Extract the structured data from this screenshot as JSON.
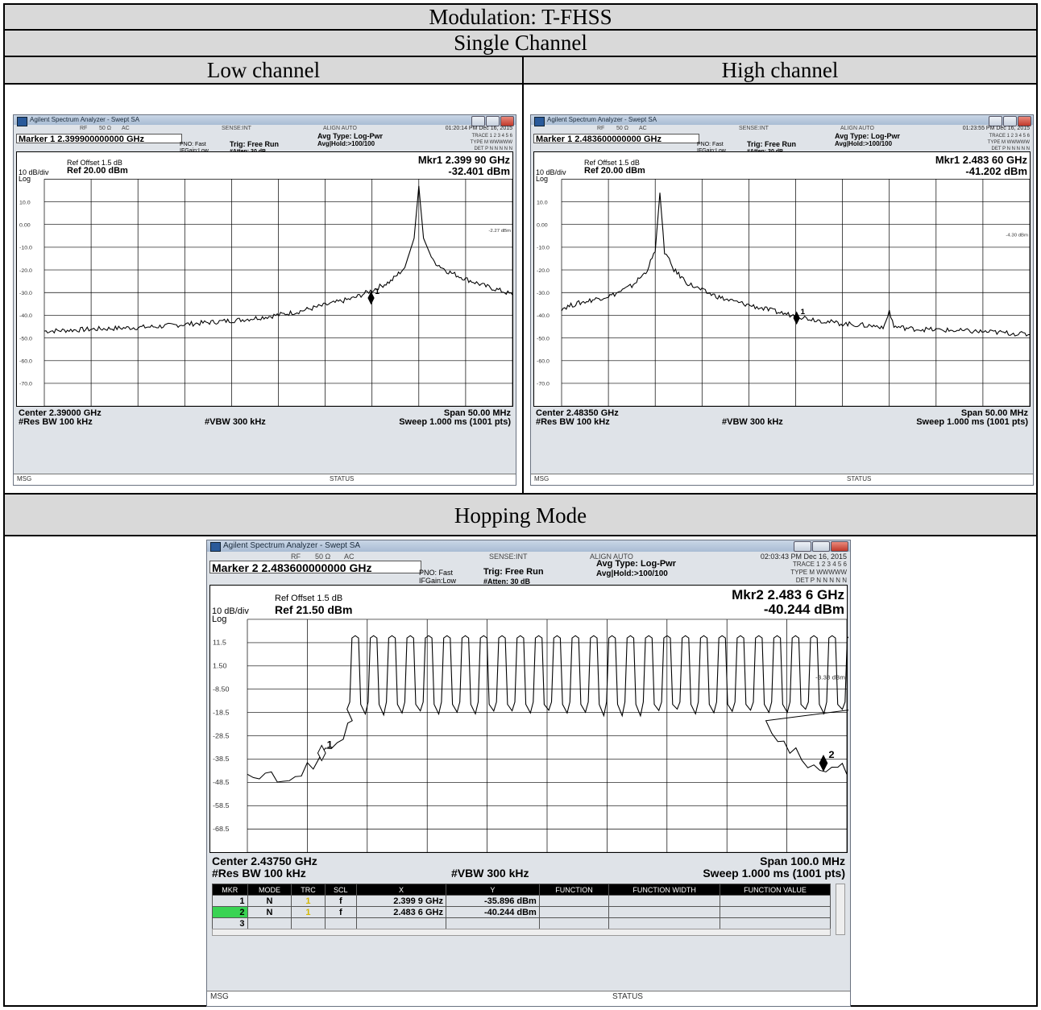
{
  "header": {
    "title": "Modulation: T-FHSS",
    "single_channel": "Single Channel",
    "low_channel": "Low channel",
    "high_channel": "High channel",
    "hopping_mode": "Hopping Mode"
  },
  "colors": {
    "header_bg": "#d9d9d9",
    "screen_bg": "#dfe3e8",
    "plot_bg": "#ffffff",
    "trace": "#000000"
  },
  "chart_data": [
    {
      "id": "low",
      "type": "line",
      "window_title": "Agilent Spectrum Analyzer - Swept SA",
      "top_labels": {
        "rf": "RF",
        "ohm": "50 Ω",
        "ac": "AC",
        "sense": "SENSE:INT",
        "align": "ALIGN AUTO",
        "time": "01:20:14 PM Dec 16, 2015"
      },
      "marker_title": "Marker 1 2.399900000000 GHz",
      "pno": "PNO: Fast",
      "ifgain": "IFGain:Low",
      "trig": "Trig: Free Run",
      "atten": "#Atten: 30 dB",
      "avg_type": "Avg Type: Log-Pwr",
      "avg_hold": "Avg|Hold:>100/100",
      "trace_row": "TRACE 1 2 3 4 5 6",
      "type_row": "TYPE M WWWWW",
      "det_row": "DET P N N N N N",
      "ref_offset": "Ref Offset 1.5 dB",
      "scale": "10 dB/div",
      "ref": "Ref 20.00 dBm",
      "log": "Log",
      "mkr_readout": "Mkr1 2.399 90 GHz",
      "mkr_value": "-32.401 dBm",
      "y_ticks": [
        "10.0",
        "0.00",
        "-10.0",
        "-20.0",
        "-30.0",
        "-40.0",
        "-50.0",
        "-60.0",
        "-70.0"
      ],
      "ylim": [
        -80,
        20
      ],
      "xlim": [
        2.365,
        2.415
      ],
      "display_line": {
        "value": -2.27,
        "label": "-2.27 dBm"
      },
      "center": "Center 2.39000 GHz",
      "res_bw": "#Res BW 100 kHz",
      "vbw": "#VBW 300 kHz",
      "span": "Span 50.00 MHz",
      "sweep": "Sweep  1.000 ms (1001 pts)",
      "msg": "MSG",
      "status": "STATUS",
      "markers": [
        {
          "label": "1",
          "x": 2.3999,
          "y": -32.4
        }
      ],
      "series": [
        {
          "x": [
            2.365,
            2.368,
            2.371,
            2.374,
            2.377,
            2.38,
            2.383,
            2.386,
            2.389,
            2.392,
            2.395,
            2.398,
            2.4,
            2.402,
            2.4035,
            2.4045,
            2.405,
            2.4055,
            2.4065,
            2.408,
            2.41,
            2.412,
            2.414,
            2.415
          ],
          "y": [
            -47,
            -46.5,
            -46,
            -45.5,
            -45,
            -44,
            -43,
            -42,
            -40.5,
            -38.5,
            -35.5,
            -32.5,
            -29,
            -25,
            -19,
            -6,
            17,
            -6,
            -16,
            -20.5,
            -24,
            -27,
            -29.5,
            -31
          ]
        }
      ]
    },
    {
      "id": "high",
      "type": "line",
      "window_title": "Agilent Spectrum Analyzer - Swept SA",
      "top_labels": {
        "rf": "RF",
        "ohm": "50 Ω",
        "ac": "AC",
        "sense": "SENSE:INT",
        "align": "ALIGN AUTO",
        "time": "01:23:55 PM Dec 16, 2015"
      },
      "marker_title": "Marker 1 2.483600000000 GHz",
      "pno": "PNO: Fast",
      "ifgain": "IFGain:Low",
      "trig": "Trig: Free Run",
      "atten": "#Atten: 30 dB",
      "avg_type": "Avg Type: Log-Pwr",
      "avg_hold": "Avg|Hold:>100/100",
      "trace_row": "TRACE 1 2 3 4 5 6",
      "type_row": "TYPE M WWWWW",
      "det_row": "DET P N N N N N",
      "ref_offset": "Ref Offset 1.5 dB",
      "scale": "10 dB/div",
      "ref": "Ref 20.00 dBm",
      "log": "Log",
      "mkr_readout": "Mkr1 2.483 60 GHz",
      "mkr_value": "-41.202 dBm",
      "y_ticks": [
        "10.0",
        "0.00",
        "-10.0",
        "-20.0",
        "-30.0",
        "-40.0",
        "-50.0",
        "-60.0",
        "-70.0"
      ],
      "ylim": [
        -80,
        20
      ],
      "xlim": [
        2.4585,
        2.5085
      ],
      "display_line": {
        "value": -4.3,
        "label": "-4.30 dBm"
      },
      "center": "Center 2.48350 GHz",
      "res_bw": "#Res BW 100 kHz",
      "vbw": "#VBW 300 kHz",
      "span": "Span 50.00 MHz",
      "sweep": "Sweep  1.000 ms (1001 pts)",
      "msg": "MSG",
      "status": "STATUS",
      "markers": [
        {
          "label": "1",
          "x": 2.4836,
          "y": -41.2
        }
      ],
      "series": [
        {
          "x": [
            2.4585,
            2.46,
            2.462,
            2.464,
            2.466,
            2.4675,
            2.4685,
            2.469,
            2.4695,
            2.4705,
            2.472,
            2.474,
            2.476,
            2.479,
            2.482,
            2.485,
            2.488,
            2.491,
            2.493,
            2.4935,
            2.494,
            2.496,
            2.499,
            2.502,
            2.505,
            2.5085
          ],
          "y": [
            -37,
            -35,
            -33,
            -31,
            -27,
            -21,
            -12,
            14,
            -12,
            -20,
            -26,
            -30,
            -33,
            -36,
            -39,
            -41.5,
            -43.5,
            -44.5,
            -45,
            -38,
            -45,
            -46,
            -46.5,
            -47,
            -47.5,
            -48.5
          ]
        }
      ]
    },
    {
      "id": "hop",
      "type": "line",
      "window_title": "Agilent Spectrum Analyzer - Swept SA",
      "top_labels": {
        "rf": "RF",
        "ohm": "50 Ω",
        "ac": "AC",
        "sense": "SENSE:INT",
        "align": "ALIGN AUTO",
        "time": "02:03:43 PM Dec 16, 2015"
      },
      "marker_title": "Marker 2 2.483600000000 GHz",
      "pno": "PNO: Fast",
      "ifgain": "IFGain:Low",
      "trig": "Trig: Free Run",
      "atten": "#Atten: 30 dB",
      "avg_type": "Avg Type: Log-Pwr",
      "avg_hold": "Avg|Hold:>100/100",
      "trace_row": "TRACE 1 2 3 4 5 6",
      "type_row": "TYPE M WWWWW",
      "det_row": "DET P N N N N N",
      "ref_offset": "Ref Offset 1.5 dB",
      "scale": "10 dB/div",
      "ref": "Ref 21.50 dBm",
      "log": "Log",
      "mkr_readout": "Mkr2 2.483 6 GHz",
      "mkr_value": "-40.244 dBm",
      "y_ticks": [
        "11.5",
        "1.50",
        "-8.50",
        "-18.5",
        "-28.5",
        "-38.5",
        "-48.5",
        "-58.5",
        "-68.5"
      ],
      "ylim": [
        -78.5,
        21.5
      ],
      "xlim": [
        2.3875,
        2.4875
      ],
      "display_line": {
        "value": -3.38,
        "label": "-3.38 dBm"
      },
      "center": "Center 2.43750 GHz",
      "res_bw": "#Res BW 100 kHz",
      "vbw": "#VBW 300 kHz",
      "span": "Span 100.0 MHz",
      "sweep": "Sweep  1.000 ms (1001 pts)",
      "msg": "MSG",
      "status": "STATUS",
      "hop_channels": {
        "first": 2.4055,
        "spacing": 0.00306,
        "count": 30,
        "peak": 14.5,
        "floor": -18
      },
      "markers": [
        {
          "label": "1",
          "x": 2.3999,
          "y": -35.896,
          "style": "open"
        },
        {
          "label": "2",
          "x": 2.4836,
          "y": -40.244,
          "style": "filled"
        }
      ],
      "edges": {
        "left_x": [
          2.3875,
          2.3895,
          2.3915,
          2.3935,
          2.3955,
          2.3975,
          2.3995,
          2.4015,
          2.4035,
          2.405
        ],
        "left_y": [
          -45,
          -47,
          -44,
          -48,
          -46,
          -40,
          -38,
          -34,
          -30,
          -22
        ],
        "right_x": [
          2.474,
          2.476,
          2.478,
          2.48,
          2.482,
          2.484,
          2.486,
          2.4875
        ],
        "right_y": [
          -22,
          -31,
          -36,
          -39,
          -41,
          -44,
          -42,
          -45
        ]
      },
      "table": {
        "headers": [
          "MKR",
          "MODE",
          "TRC",
          "SCL",
          "X",
          "Y",
          "FUNCTION",
          "FUNCTION WIDTH",
          "FUNCTION VALUE"
        ],
        "rows": [
          [
            "1",
            "N",
            "1",
            "f",
            "2.399 9 GHz",
            "-35.896 dBm",
            "",
            "",
            ""
          ],
          [
            "2",
            "N",
            "1",
            "f",
            "2.483 6 GHz",
            "-40.244 dBm",
            "",
            "",
            ""
          ],
          [
            "3",
            "",
            "",
            "",
            "",
            "",
            "",
            "",
            ""
          ]
        ]
      }
    }
  ]
}
